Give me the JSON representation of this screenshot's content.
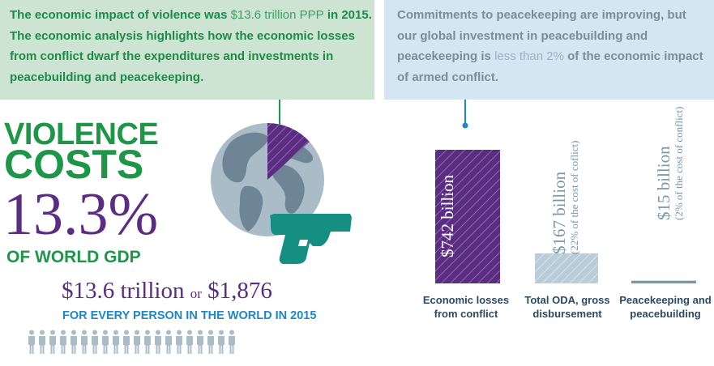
{
  "left_panel": {
    "text_bold_1": "The economic impact of violence was ",
    "text_light_1": "$13.6 trillion PPP",
    "text_bold_2": " in 2015. The economic analysis highlights how the economic losses from conflict dwarf the expenditures and investments in peacebuilding and peacekeeping."
  },
  "right_panel": {
    "text_bold_1": "Commitments to peacekeeping are improving, but our global investment in peacebuilding and peacekeeping is ",
    "text_light_1": "less than 2%",
    "text_bold_2": " of the economic impact of armed conflict."
  },
  "headline": {
    "line1": "VIOLENCE",
    "line2": "COSTS",
    "percent": "13.3%",
    "of_world_gdp": "OF WORLD GDP",
    "trillion": "$13.6 trillion",
    "or": "or",
    "per_person": "$1,876",
    "every_person": "FOR EVERY PERSON  IN THE WORLD IN 2015"
  },
  "icons": [
    "globe-icon",
    "handgun-icon",
    "person-icon"
  ],
  "people_count": 20,
  "pie_slice_fraction": 0.133,
  "bars": [
    {
      "amount": "$742 billion",
      "note": "",
      "caption_line1": "Economic losses",
      "caption_line2": "from conflict",
      "value_billion": 742
    },
    {
      "amount": "$167 billion",
      "note": "(22% of the cost of coflict)",
      "caption_line1": "Total ODA, gross",
      "caption_line2": "disbursement",
      "value_billion": 167
    },
    {
      "amount": "$15 billion",
      "note": "(2% of the cost of conflict)",
      "caption_line1": "Peacekeeping and",
      "caption_line2": "peacebuilding",
      "value_billion": 15
    }
  ],
  "colors": {
    "green": "#1e9648",
    "purple": "#5b2d82",
    "blue": "#1f86c8",
    "left_panel_bg": "#cde4d2",
    "right_panel_bg": "#d3e6f2",
    "globe": "#a9bcc8",
    "land": "#6a7f8e",
    "gun": "#168f83",
    "oda_bar": "#b9ccd8"
  }
}
